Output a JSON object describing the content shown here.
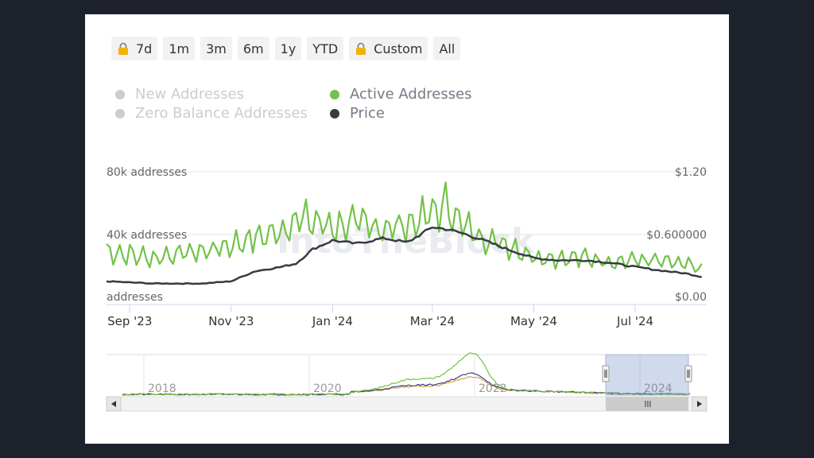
{
  "range_buttons": [
    {
      "label": "7d",
      "locked": true
    },
    {
      "label": "1m",
      "locked": false
    },
    {
      "label": "3m",
      "locked": false
    },
    {
      "label": "6m",
      "locked": false
    },
    {
      "label": "1y",
      "locked": false
    },
    {
      "label": "YTD",
      "locked": false
    },
    {
      "label": "Custom",
      "locked": true
    },
    {
      "label": "All",
      "locked": false
    }
  ],
  "legend": [
    {
      "name": "New Addresses",
      "color": "#cccccc",
      "enabled": false
    },
    {
      "name": "Zero Balance Addresses",
      "color": "#cccccc",
      "enabled": false
    },
    {
      "name": "Active Addresses",
      "color": "#72c247",
      "enabled": true
    },
    {
      "name": "Price",
      "color": "#363a42",
      "enabled": true
    }
  ],
  "watermark": "IntoTheBlock",
  "chart_data": {
    "type": "line",
    "x_tick_labels": [
      "Sep '23",
      "Nov '23",
      "Jan '24",
      "Mar '24",
      "May '24",
      "Jul '24"
    ],
    "y_left": {
      "tick_labels": [
        "addresses",
        "40k addresses",
        "80k addresses"
      ],
      "range": [
        0,
        80000
      ]
    },
    "y_right": {
      "tick_labels": [
        "$0.00",
        "$0.600000",
        "$1.20"
      ],
      "range": [
        0,
        1.2
      ]
    },
    "series": [
      {
        "name": "Active Addresses",
        "color": "#72c247",
        "axis": "left",
        "x": [
          "2023-08-18",
          "2023-09-01",
          "2023-09-15",
          "2023-10-01",
          "2023-10-15",
          "2023-11-01",
          "2023-11-15",
          "2023-12-01",
          "2023-12-10",
          "2023-12-20",
          "2024-01-01",
          "2024-01-15",
          "2024-02-01",
          "2024-02-15",
          "2024-03-01",
          "2024-03-10",
          "2024-03-20",
          "2024-04-01",
          "2024-04-15",
          "2024-05-01",
          "2024-05-15",
          "2024-06-01",
          "2024-06-15",
          "2024-07-01",
          "2024-07-15",
          "2024-08-01",
          "2024-08-10"
        ],
        "values": [
          32000,
          30000,
          28000,
          31000,
          32000,
          36000,
          40000,
          44000,
          52000,
          50000,
          47000,
          49000,
          46000,
          48000,
          55000,
          60000,
          47000,
          40000,
          36000,
          29000,
          28000,
          28000,
          26000,
          27000,
          26000,
          24000,
          20000
        ]
      },
      {
        "name": "Price",
        "color": "#363a42",
        "axis": "right",
        "x": [
          "2023-08-18",
          "2023-09-01",
          "2023-09-15",
          "2023-10-01",
          "2023-10-15",
          "2023-11-01",
          "2023-11-15",
          "2023-12-01",
          "2023-12-10",
          "2023-12-20",
          "2024-01-01",
          "2024-01-15",
          "2024-02-01",
          "2024-02-15",
          "2024-03-01",
          "2024-03-10",
          "2024-03-20",
          "2024-04-01",
          "2024-04-15",
          "2024-05-01",
          "2024-05-15",
          "2024-06-01",
          "2024-06-15",
          "2024-07-01",
          "2024-07-15",
          "2024-08-01",
          "2024-08-10"
        ],
        "values": [
          0.21,
          0.2,
          0.19,
          0.19,
          0.19,
          0.21,
          0.3,
          0.34,
          0.37,
          0.5,
          0.58,
          0.55,
          0.6,
          0.56,
          0.7,
          0.68,
          0.64,
          0.58,
          0.5,
          0.42,
          0.4,
          0.4,
          0.38,
          0.34,
          0.31,
          0.28,
          0.25
        ]
      }
    ],
    "navigator": {
      "x_tick_labels": [
        "2018",
        "2020",
        "2022",
        "2024"
      ]
    }
  }
}
